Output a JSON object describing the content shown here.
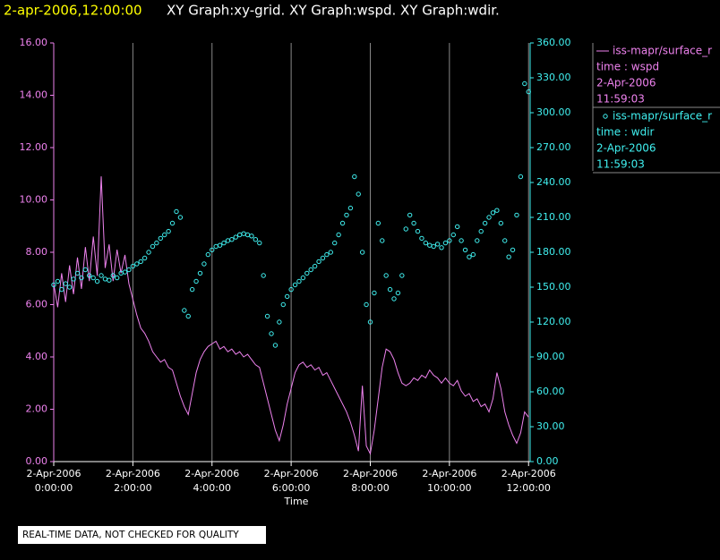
{
  "header": {
    "timestamp": "2-apr-2006,12:00:00",
    "text": "XY Graph:xy-grid.  XY Graph:wspd.  XY Graph:wdir."
  },
  "footer": "REAL-TIME DATA, NOT CHECKED FOR QUALITY",
  "chart_data": {
    "type": "line",
    "xlabel": "Time",
    "grid": true,
    "xlim": [
      0,
      12.04
    ],
    "ylim": [
      0,
      16
    ],
    "y2lim": [
      0,
      360
    ],
    "xticks": [
      {
        "value": 0,
        "date": "2-Apr-2006",
        "label": "0:00:00"
      },
      {
        "value": 2,
        "date": "2-Apr-2006",
        "label": "2:00:00"
      },
      {
        "value": 4,
        "date": "2-Apr-2006",
        "label": "4:00:00"
      },
      {
        "value": 6,
        "date": "2-Apr-2006",
        "label": "6:00:00"
      },
      {
        "value": 8,
        "date": "2-Apr-2006",
        "label": "8:00:00"
      },
      {
        "value": 10,
        "date": "2-Apr-2006",
        "label": "10:00:00"
      },
      {
        "value": 12,
        "date": "2-Apr-2006",
        "label": "12:00:00"
      }
    ],
    "yticks": [
      {
        "value": 0,
        "label": "0.00"
      },
      {
        "value": 2,
        "label": "2.00"
      },
      {
        "value": 4,
        "label": "4.00"
      },
      {
        "value": 6,
        "label": "6.00"
      },
      {
        "value": 8,
        "label": "8.00"
      },
      {
        "value": 10,
        "label": "10.00"
      },
      {
        "value": 12,
        "label": "12.00"
      },
      {
        "value": 14,
        "label": "14.00"
      },
      {
        "value": 16,
        "label": "16.00"
      }
    ],
    "y2ticks": [
      {
        "value": 0,
        "label": "0.00"
      },
      {
        "value": 30,
        "label": "30.00"
      },
      {
        "value": 60,
        "label": "60.00"
      },
      {
        "value": 90,
        "label": "90.00"
      },
      {
        "value": 120,
        "label": "120.00"
      },
      {
        "value": 150,
        "label": "150.00"
      },
      {
        "value": 180,
        "label": "180.00"
      },
      {
        "value": 210,
        "label": "210.00"
      },
      {
        "value": 240,
        "label": "240.00"
      },
      {
        "value": 270,
        "label": "270.00"
      },
      {
        "value": 300,
        "label": "300.00"
      },
      {
        "value": 330,
        "label": "330.00"
      },
      {
        "value": 360,
        "label": "360.00"
      }
    ],
    "x": [
      0,
      0.1,
      0.2,
      0.3,
      0.4,
      0.5,
      0.6,
      0.7,
      0.8,
      0.9,
      1,
      1.1,
      1.2,
      1.3,
      1.4,
      1.5,
      1.6,
      1.7,
      1.8,
      1.9,
      2,
      2.1,
      2.2,
      2.3,
      2.4,
      2.5,
      2.6,
      2.7,
      2.8,
      2.9,
      3,
      3.1,
      3.2,
      3.3,
      3.4,
      3.5,
      3.6,
      3.7,
      3.8,
      3.9,
      4,
      4.1,
      4.2,
      4.3,
      4.4,
      4.5,
      4.6,
      4.7,
      4.8,
      4.9,
      5,
      5.1,
      5.2,
      5.3,
      5.4,
      5.5,
      5.6,
      5.7,
      5.8,
      5.9,
      6,
      6.1,
      6.2,
      6.3,
      6.4,
      6.5,
      6.6,
      6.7,
      6.8,
      6.9,
      7,
      7.1,
      7.2,
      7.3,
      7.4,
      7.5,
      7.6,
      7.7,
      7.8,
      7.9,
      8,
      8.1,
      8.2,
      8.3,
      8.4,
      8.5,
      8.6,
      8.7,
      8.8,
      8.9,
      9,
      9.1,
      9.2,
      9.3,
      9.4,
      9.5,
      9.6,
      9.7,
      9.8,
      9.9,
      10,
      10.1,
      10.2,
      10.3,
      10.4,
      10.5,
      10.6,
      10.7,
      10.8,
      10.9,
      11,
      11.1,
      11.2,
      11.3,
      11.4,
      11.5,
      11.6,
      11.7,
      11.8,
      11.9,
      12
    ],
    "series": [
      {
        "name": "iss-mapr/surface_r",
        "type": "line",
        "color": "#ee82ee",
        "axis": "y",
        "legend_lines": [
          "time : wspd",
          "2-Apr-2006",
          "11:59:03"
        ],
        "values": [
          6.8,
          5.9,
          7.2,
          6.1,
          7.5,
          6.4,
          7.8,
          6.6,
          8.2,
          6.9,
          8.6,
          7.1,
          10.9,
          7.4,
          8.3,
          6.9,
          8.1,
          7.2,
          7.9,
          6.8,
          6.2,
          5.6,
          5.1,
          4.9,
          4.6,
          4.2,
          4.0,
          3.8,
          3.9,
          3.6,
          3.5,
          3.0,
          2.5,
          2.1,
          1.8,
          2.6,
          3.4,
          3.9,
          4.2,
          4.4,
          4.5,
          4.6,
          4.3,
          4.4,
          4.2,
          4.3,
          4.1,
          4.2,
          4.0,
          4.1,
          3.9,
          3.7,
          3.6,
          3.0,
          2.4,
          1.8,
          1.2,
          0.8,
          1.4,
          2.2,
          2.8,
          3.4,
          3.7,
          3.8,
          3.6,
          3.7,
          3.5,
          3.6,
          3.3,
          3.4,
          3.1,
          2.8,
          2.5,
          2.2,
          1.9,
          1.5,
          1.0,
          0.4,
          2.9,
          0.6,
          0.3,
          1.2,
          2.4,
          3.6,
          4.3,
          4.2,
          3.9,
          3.4,
          3.0,
          2.9,
          3.0,
          3.2,
          3.1,
          3.3,
          3.2,
          3.5,
          3.3,
          3.2,
          3.0,
          3.2,
          3.0,
          2.9,
          3.1,
          2.7,
          2.5,
          2.6,
          2.3,
          2.4,
          2.1,
          2.2,
          1.9,
          2.4,
          3.4,
          2.8,
          1.9,
          1.4,
          1.0,
          0.7,
          1.1,
          1.9,
          1.7
        ]
      },
      {
        "name": "iss-mapr/surface_r",
        "type": "scatter",
        "color": "#40f0f0",
        "axis": "y2",
        "legend_lines": [
          "time : wdir",
          "2-Apr-2006",
          "11:59:03"
        ],
        "values": [
          152,
          155,
          148,
          153,
          150,
          157,
          162,
          158,
          165,
          160,
          158,
          155,
          160,
          157,
          156,
          160,
          158,
          162,
          163,
          165,
          168,
          170,
          172,
          175,
          180,
          185,
          188,
          192,
          195,
          198,
          205,
          215,
          210,
          130,
          125,
          148,
          155,
          162,
          170,
          178,
          182,
          185,
          186,
          188,
          190,
          191,
          193,
          195,
          196,
          195,
          194,
          191,
          188,
          160,
          125,
          110,
          100,
          120,
          135,
          142,
          148,
          152,
          155,
          158,
          162,
          165,
          168,
          172,
          175,
          178,
          180,
          188,
          195,
          205,
          212,
          218,
          245,
          230,
          180,
          135,
          120,
          145,
          205,
          190,
          160,
          148,
          140,
          145,
          160,
          200,
          212,
          205,
          198,
          192,
          188,
          186,
          185,
          187,
          184,
          188,
          190,
          195,
          202,
          190,
          182,
          176,
          178,
          190,
          198,
          205,
          210,
          214,
          216,
          205,
          190,
          176,
          182,
          212,
          245,
          325,
          318
        ]
      }
    ]
  }
}
